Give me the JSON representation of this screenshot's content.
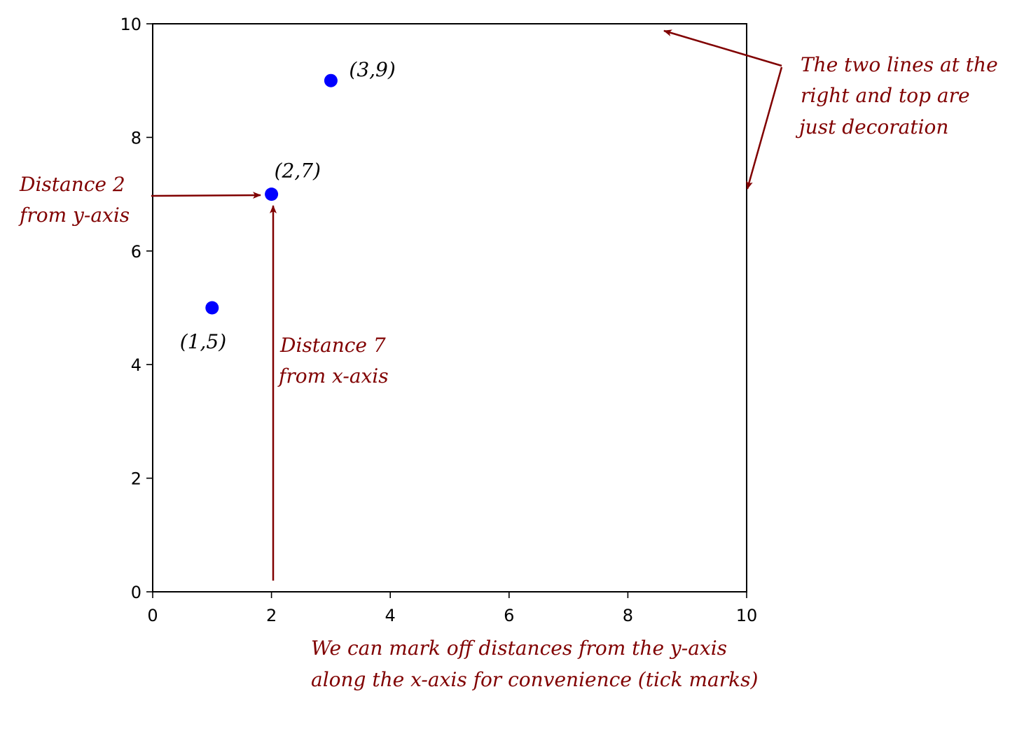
{
  "chart_data": {
    "type": "scatter",
    "title": "",
    "xlabel": "",
    "ylabel": "",
    "xlim": [
      0,
      10
    ],
    "ylim": [
      0,
      10
    ],
    "grid": false,
    "x_ticks": [
      "0",
      "2",
      "4",
      "6",
      "8",
      "10"
    ],
    "y_ticks": [
      "0",
      "2",
      "4",
      "6",
      "8",
      "10"
    ],
    "point_color": "#0000ff",
    "annotation_color": "#800000",
    "points": [
      {
        "x": 1,
        "y": 5,
        "label": "(1,5)"
      },
      {
        "x": 2,
        "y": 7,
        "label": "(2,7)"
      },
      {
        "x": 3,
        "y": 9,
        "label": "(3,9)"
      }
    ],
    "annotations": [
      {
        "id": "distance-y",
        "lines": [
          "Distance 2",
          "from y-axis"
        ]
      },
      {
        "id": "distance-x",
        "lines": [
          "Distance 7",
          "from x-axis"
        ]
      },
      {
        "id": "decoration",
        "lines": [
          "The two lines at the",
          "right and top are",
          "just decoration"
        ]
      },
      {
        "id": "tick-marks",
        "lines": [
          "We can mark off distances from the y-axis",
          "along the x-axis for convenience (tick marks)"
        ]
      }
    ]
  }
}
